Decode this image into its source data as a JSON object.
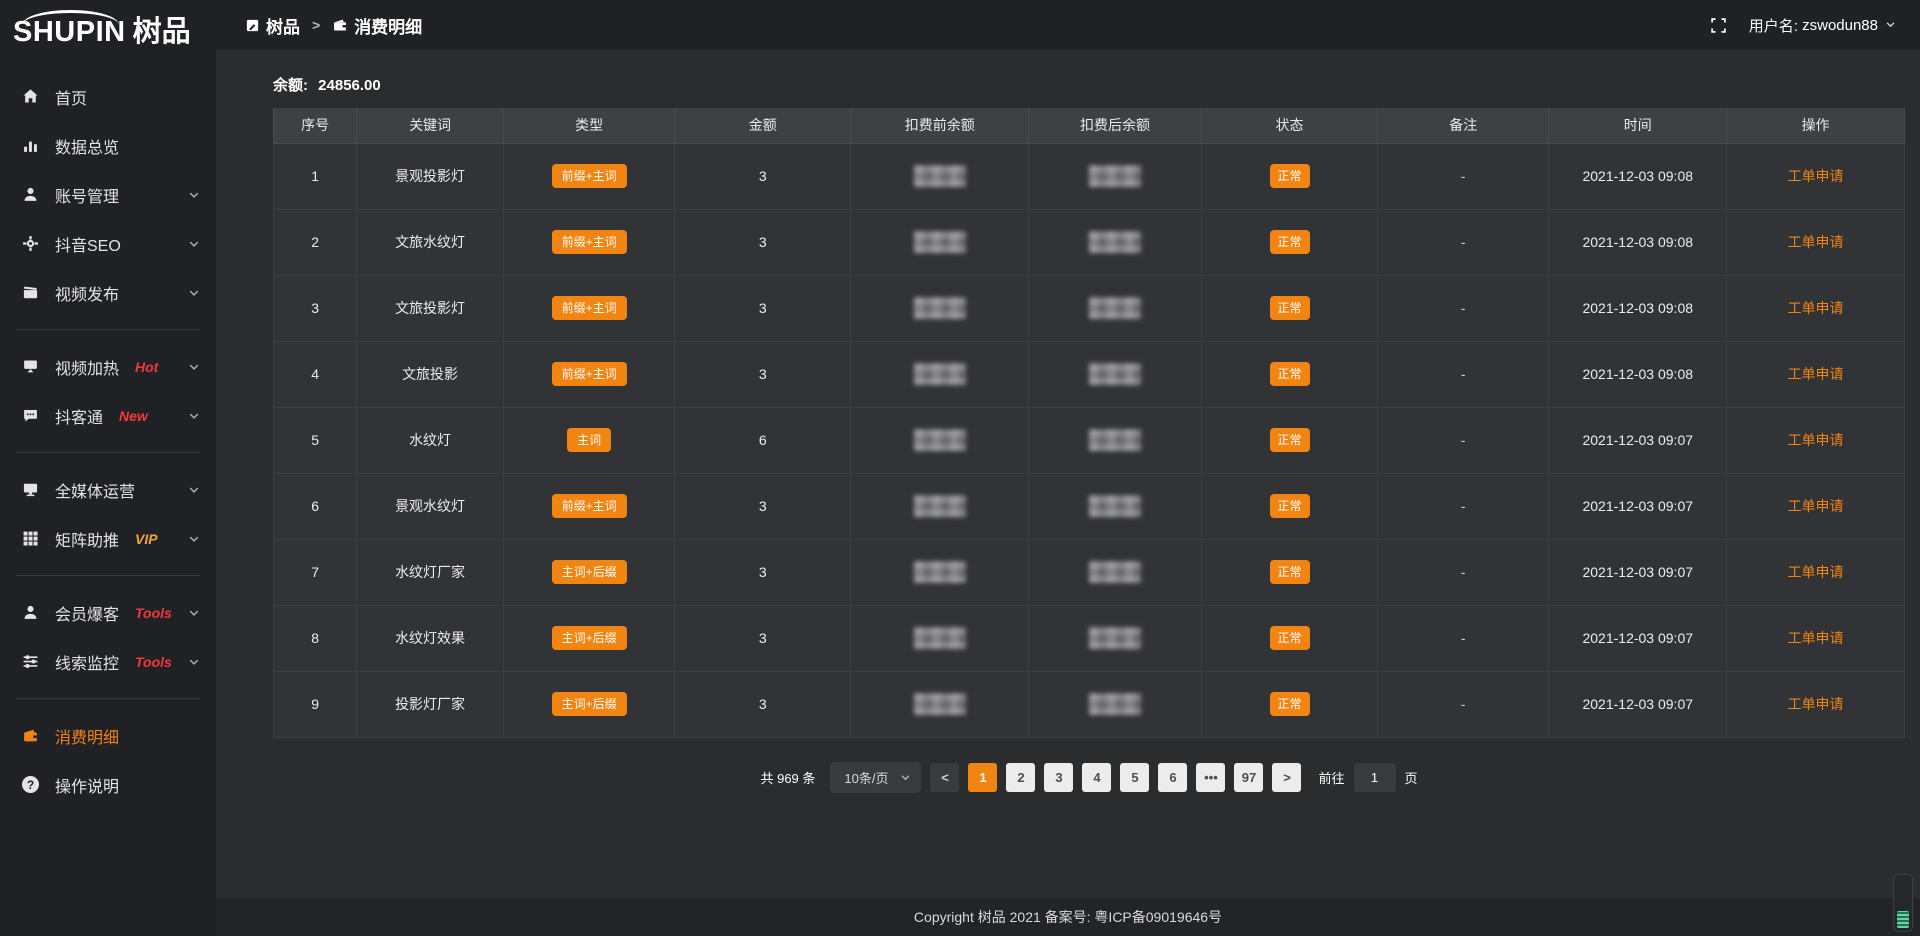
{
  "logo": {
    "latin": "SHUPIN",
    "cjk": "树品"
  },
  "header": {
    "breadcrumb": [
      {
        "label": "树品",
        "icon": "document"
      },
      {
        "label": "消费明细",
        "icon": "wallet"
      }
    ],
    "separator": ">",
    "username_label": "用户名:",
    "username": "zswodun88"
  },
  "sidebar": {
    "items": [
      {
        "icon": "home",
        "label": "首页"
      },
      {
        "icon": "bar-chart",
        "label": "数据总览"
      },
      {
        "icon": "user",
        "label": "账号管理",
        "chevron": true
      },
      {
        "icon": "gear",
        "label": "抖音SEO",
        "chevron": true
      },
      {
        "icon": "video",
        "label": "视频发布",
        "chevron": true
      },
      {
        "divider": true
      },
      {
        "icon": "heat",
        "label": "视频加热",
        "tag": "Hot",
        "tag_color": "#f6383e",
        "chevron": true
      },
      {
        "icon": "chat",
        "label": "抖客通",
        "tag": "New",
        "tag_color": "#f6383e",
        "chevron": true
      },
      {
        "divider": true
      },
      {
        "icon": "monitor",
        "label": "全媒体运营",
        "chevron": true
      },
      {
        "icon": "grid",
        "label": "矩阵助推",
        "tag": "VIP",
        "tag_color": "#f0a63a",
        "chevron": true
      },
      {
        "divider": true
      },
      {
        "icon": "member",
        "label": "会员爆客",
        "tag": "Tools",
        "tag_color": "#f6383e",
        "chevron": true
      },
      {
        "icon": "sliders",
        "label": "线索监控",
        "tag": "Tools",
        "tag_color": "#f6383e",
        "chevron": true
      },
      {
        "divider": true
      },
      {
        "icon": "wallet",
        "label": "消费明细",
        "active": true
      },
      {
        "icon": "question",
        "label": "操作说明"
      }
    ]
  },
  "balance": {
    "label": "余额:",
    "value": "24856.00"
  },
  "table": {
    "columns": [
      "序号",
      "关键词",
      "类型",
      "金额",
      "扣费前余额",
      "扣费后余额",
      "状态",
      "备注",
      "时间",
      "操作"
    ],
    "rows": [
      {
        "index": "1",
        "keyword": "景观投影灯",
        "type": "前缀+主词",
        "amount": "3",
        "status": "正常",
        "note": "-",
        "time": "2021-12-03 09:08",
        "action": "工单申请"
      },
      {
        "index": "2",
        "keyword": "文旅水纹灯",
        "type": "前缀+主词",
        "amount": "3",
        "status": "正常",
        "note": "-",
        "time": "2021-12-03 09:08",
        "action": "工单申请"
      },
      {
        "index": "3",
        "keyword": "文旅投影灯",
        "type": "前缀+主词",
        "amount": "3",
        "status": "正常",
        "note": "-",
        "time": "2021-12-03 09:08",
        "action": "工单申请"
      },
      {
        "index": "4",
        "keyword": "文旅投影",
        "type": "前缀+主词",
        "amount": "3",
        "status": "正常",
        "note": "-",
        "time": "2021-12-03 09:08",
        "action": "工单申请"
      },
      {
        "index": "5",
        "keyword": "水纹灯",
        "type": "主词",
        "amount": "6",
        "status": "正常",
        "note": "-",
        "time": "2021-12-03 09:07",
        "action": "工单申请"
      },
      {
        "index": "6",
        "keyword": "景观水纹灯",
        "type": "前缀+主词",
        "amount": "3",
        "status": "正常",
        "note": "-",
        "time": "2021-12-03 09:07",
        "action": "工单申请"
      },
      {
        "index": "7",
        "keyword": "水纹灯厂家",
        "type": "主词+后缀",
        "amount": "3",
        "status": "正常",
        "note": "-",
        "time": "2021-12-03 09:07",
        "action": "工单申请"
      },
      {
        "index": "8",
        "keyword": "水纹灯效果",
        "type": "主词+后缀",
        "amount": "3",
        "status": "正常",
        "note": "-",
        "time": "2021-12-03 09:07",
        "action": "工单申请"
      },
      {
        "index": "9",
        "keyword": "投影灯厂家",
        "type": "主词+后缀",
        "amount": "3",
        "status": "正常",
        "note": "-",
        "time": "2021-12-03 09:07",
        "action": "工单申请"
      }
    ]
  },
  "pagination": {
    "total": "共 969 条",
    "page_size": "10条/页",
    "pages": [
      "1",
      "2",
      "3",
      "4",
      "5",
      "6",
      "•••",
      "97"
    ],
    "active_page": "1",
    "prev": "<",
    "next": ">",
    "goto_label": "前往",
    "goto_value": "1",
    "goto_suffix": "页"
  },
  "footer": {
    "copyright": "Copyright 树品 2021 备案号: 粤ICP备09019646号"
  },
  "colors": {
    "accent": "#f28411",
    "hot_tag": "#f6383e",
    "vip_tag": "#f0a63a",
    "sidebar_bg": "#202124",
    "content_bg": "#2b2c2e",
    "table_bg": "#323336"
  }
}
